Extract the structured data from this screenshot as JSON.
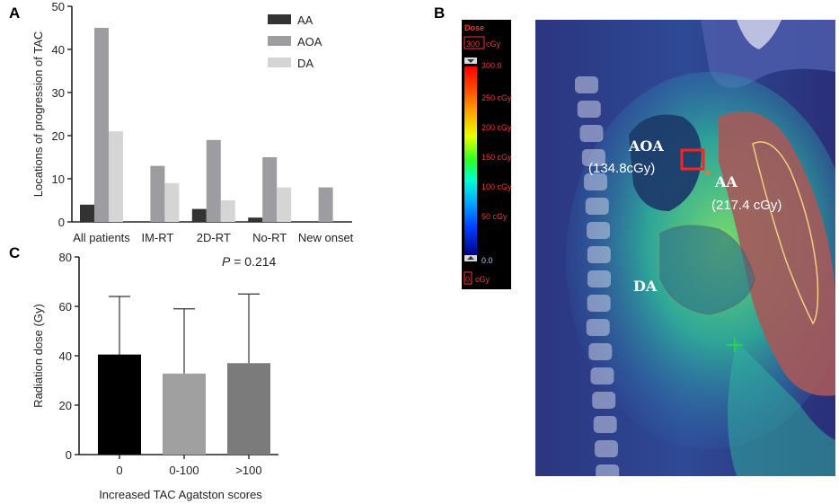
{
  "panels": {
    "a": {
      "letter": "A"
    },
    "b": {
      "letter": "B"
    },
    "c": {
      "letter": "C"
    }
  },
  "chart_data": [
    {
      "type": "bar",
      "panel": "A",
      "categories": [
        "All patients",
        "IM-RT",
        "2D-RT",
        "No-RT",
        "New onset"
      ],
      "series": [
        {
          "name": "AA",
          "color": "#333333",
          "values": [
            4,
            0,
            3,
            1,
            0
          ]
        },
        {
          "name": "AOA",
          "color": "#9d9da1",
          "values": [
            45,
            13,
            19,
            15,
            8
          ]
        },
        {
          "name": "DA",
          "color": "#d5d5d5",
          "values": [
            21,
            9,
            5,
            8,
            0
          ]
        }
      ],
      "ylabel": "Locations of progression of TAC",
      "xlabel": "",
      "ylim": [
        0,
        50
      ],
      "yticks": [
        "0",
        "10",
        "20",
        "30",
        "40",
        "50"
      ],
      "legend": "top-right",
      "grid": false
    },
    {
      "type": "bar",
      "panel": "C",
      "categories": [
        "0",
        "0-100",
        ">100"
      ],
      "values": [
        40.5,
        32.8,
        37
      ],
      "errors_upper": [
        64,
        59,
        65
      ],
      "colors": [
        "#000000",
        "#a0a0a0",
        "#7b7b7b"
      ],
      "ylabel": "Radiation dose (Gy)",
      "xlabel": "Increased TAC Agatston scores",
      "ylim": [
        0,
        80
      ],
      "yticks": [
        "0",
        "20",
        "40",
        "60",
        "80"
      ],
      "annotation": {
        "italic": "P",
        "rest": " = 0.214"
      },
      "grid": false
    }
  ],
  "image_b": {
    "colorbar": {
      "header": "Dose",
      "max_box": "300",
      "unit": "cGy",
      "top_value": "300.0",
      "ticks": [
        "250 cGy",
        "200 cGy",
        "150 cGy",
        "100 cGy",
        "50 cGy"
      ],
      "bottom_value": "0.0",
      "min_box": "0",
      "min_unit": "cGy"
    },
    "labels": {
      "aoa": "AOA",
      "aoa_dose": "(134.8cGy)",
      "aa": "AA",
      "aa_dose": "(217.4 cGy)",
      "da": "DA"
    },
    "colors": {
      "background": "#2a2f78",
      "spine": "#cfd1e6",
      "aorta": "#1d3c6b",
      "heart": "#a5595a",
      "marker": "#ff2020"
    }
  }
}
